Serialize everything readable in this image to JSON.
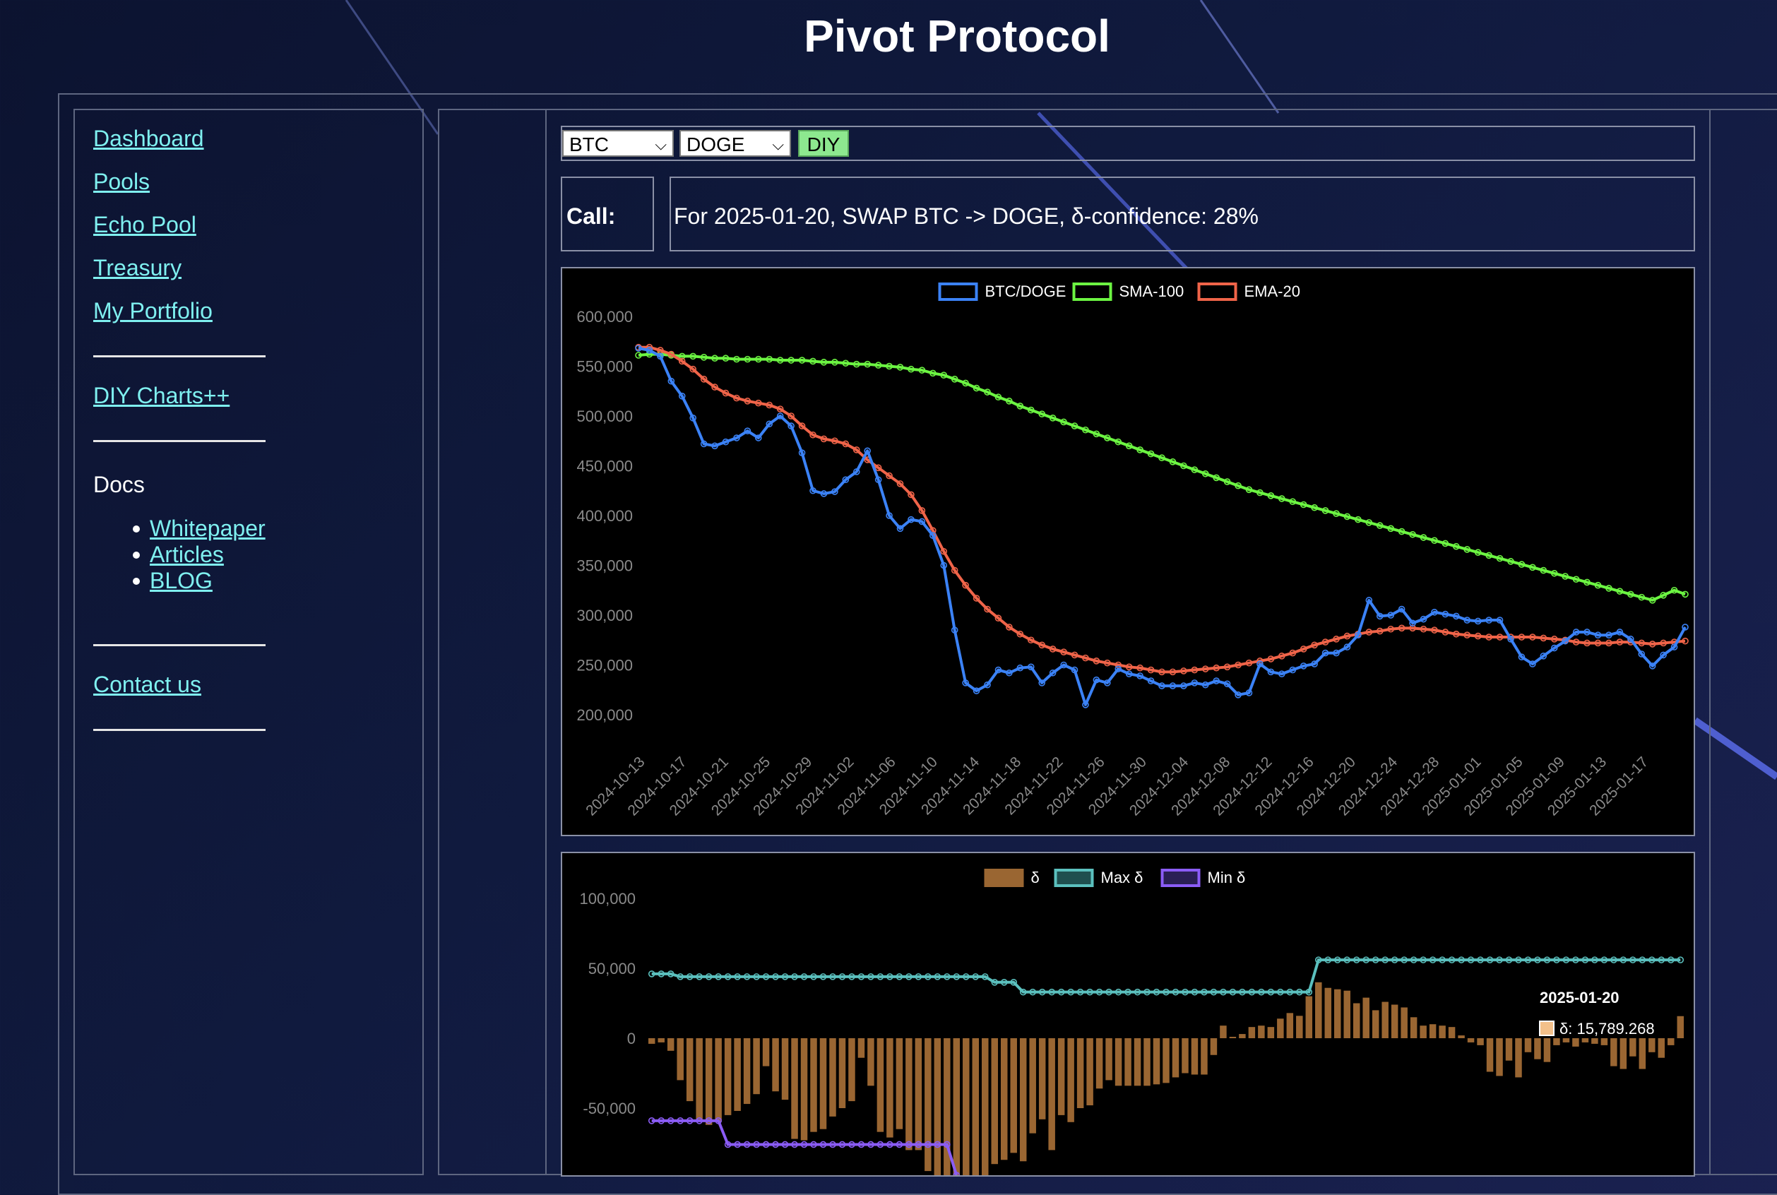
{
  "site": {
    "title": "Pivot Protocol"
  },
  "sidebar": {
    "links": [
      "Dashboard",
      "Pools",
      "Echo Pool",
      "Treasury",
      "My Portfolio"
    ],
    "diy": "DIY Charts++",
    "docs_label": "Docs",
    "docs": [
      "Whitepaper",
      "Articles",
      "BLOG"
    ],
    "contact": "Contact us"
  },
  "controls": {
    "base_select": "BTC",
    "quote_select": "DOGE",
    "diy_button": "DIY"
  },
  "call": {
    "label": "Call:",
    "text": "For 2025-01-20, SWAP BTC -> DOGE, δ-confidence: 28%"
  },
  "colors": {
    "link": "#7ff0f0",
    "btc_doge": "#3b82f6",
    "sma": "#6cf542",
    "ema": "#f06449",
    "delta": "#9a6632",
    "max_delta": "#5bc0be",
    "min_delta": "#8b5cf6"
  },
  "chart_data": [
    {
      "type": "line",
      "title": "",
      "xlabel": "",
      "ylabel": "",
      "ylim": [
        200000,
        600000
      ],
      "y_ticks": [
        "600,000",
        "550,000",
        "500,000",
        "450,000",
        "400,000",
        "350,000",
        "300,000",
        "250,000",
        "200,000"
      ],
      "x_tick_labels": [
        "2024-10-13",
        "2024-10-17",
        "2024-10-21",
        "2024-10-25",
        "2024-10-29",
        "2024-11-02",
        "2024-11-06",
        "2024-11-10",
        "2024-11-14",
        "2024-11-18",
        "2024-11-22",
        "2024-11-26",
        "2024-11-30",
        "2024-12-04",
        "2024-12-08",
        "2024-12-12",
        "2024-12-16",
        "2024-12-20",
        "2024-12-24",
        "2024-12-28",
        "2025-01-01",
        "2025-01-05",
        "2025-01-09",
        "2025-01-13",
        "2025-01-17"
      ],
      "legend_position": "top",
      "series": [
        {
          "name": "BTC/DOGE",
          "color": "#3b82f6",
          "values": [
            568000,
            566000,
            560000,
            535000,
            520000,
            498000,
            472000,
            470000,
            474000,
            478000,
            485000,
            478000,
            492000,
            500000,
            490000,
            463000,
            425000,
            422000,
            424000,
            436000,
            444000,
            465000,
            436000,
            400000,
            387000,
            396000,
            394000,
            380000,
            350000,
            285000,
            232000,
            224000,
            230000,
            245000,
            242000,
            247000,
            248000,
            232000,
            242000,
            250000,
            245000,
            210000,
            235000,
            232000,
            246000,
            241000,
            239000,
            234000,
            229000,
            229000,
            229000,
            232000,
            230000,
            234000,
            231000,
            220000,
            222000,
            251000,
            243000,
            241000,
            245000,
            249000,
            251000,
            262000,
            262000,
            268000,
            280000,
            315000,
            299000,
            300000,
            306000,
            292000,
            296000,
            303000,
            301000,
            299000,
            295000,
            294000,
            295000,
            295000,
            276000,
            258000,
            251000,
            259000,
            267000,
            274000,
            283000,
            283000,
            280000,
            280000,
            283000,
            276000,
            261000,
            249000,
            260000,
            268000,
            288000
          ]
        },
        {
          "name": "SMA-100",
          "color": "#6cf542",
          "values": [
            561000,
            562000,
            562000,
            561000,
            560000,
            560000,
            559000,
            558000,
            558000,
            557000,
            557000,
            557000,
            557000,
            556000,
            556000,
            556000,
            555000,
            554000,
            554000,
            553000,
            552000,
            552000,
            551000,
            550000,
            549000,
            547000,
            546000,
            543000,
            541000,
            537000,
            533000,
            528000,
            524000,
            519000,
            515000,
            510000,
            506000,
            502000,
            498000,
            494000,
            490000,
            486000,
            482000,
            478000,
            474000,
            470000,
            466000,
            462000,
            458000,
            454000,
            450000,
            446000,
            442000,
            438000,
            434000,
            430000,
            426000,
            423000,
            420000,
            417000,
            414000,
            411000,
            408000,
            405000,
            402000,
            399000,
            396000,
            393000,
            390000,
            387000,
            384000,
            381000,
            378000,
            375000,
            372000,
            369000,
            366000,
            363000,
            360000,
            357000,
            354000,
            351000,
            348000,
            345000,
            342000,
            339000,
            336000,
            333000,
            330000,
            327000,
            324000,
            321000,
            318000,
            315000,
            320000,
            325000,
            321000
          ]
        },
        {
          "name": "EMA-20",
          "color": "#f06449",
          "values": [
            569000,
            569000,
            566000,
            562000,
            555000,
            547000,
            537000,
            529000,
            523000,
            518000,
            515000,
            513000,
            511000,
            507000,
            500000,
            490000,
            481000,
            477000,
            475000,
            472000,
            466000,
            456000,
            448000,
            440000,
            432000,
            421000,
            405000,
            385000,
            364000,
            345000,
            330000,
            317000,
            306000,
            297000,
            288000,
            281000,
            275000,
            270000,
            266000,
            263000,
            260000,
            257000,
            254000,
            252000,
            250000,
            248000,
            247000,
            245000,
            243000,
            243000,
            244000,
            245000,
            246000,
            247000,
            248000,
            250000,
            252000,
            254000,
            256000,
            259000,
            262000,
            266000,
            270000,
            273000,
            276000,
            279000,
            281000,
            283000,
            284000,
            286000,
            287000,
            287000,
            286000,
            285000,
            283000,
            281000,
            280000,
            279000,
            278000,
            278000,
            278000,
            278000,
            278000,
            277000,
            276000,
            275000,
            273000,
            272000,
            272000,
            272000,
            273000,
            273000,
            272000,
            271000,
            272000,
            273000,
            274000
          ]
        }
      ]
    },
    {
      "type": "bar",
      "title": "",
      "xlabel": "",
      "ylabel": "",
      "ylim": [
        -100000,
        100000
      ],
      "y_ticks": [
        "100,000",
        "50,000",
        "0",
        "-50,000"
      ],
      "legend_position": "top",
      "tooltip": {
        "title": "2025-01-20",
        "label": "δ: 15,789.268"
      },
      "series": [
        {
          "name": "δ",
          "color": "#9a6632",
          "values": [
            -4000,
            -3000,
            -9000,
            -30000,
            -45000,
            -58000,
            -62000,
            -60000,
            -55000,
            -52000,
            -47000,
            -40000,
            -20000,
            -38000,
            -44000,
            -72000,
            -73000,
            -67000,
            -65000,
            -56000,
            -50000,
            -45000,
            -14000,
            -34000,
            -67000,
            -71000,
            -65000,
            -80000,
            -80000,
            -95000,
            -98000,
            -98000,
            -98000,
            -98000,
            -98000,
            -98000,
            -90000,
            -87000,
            -82000,
            -88000,
            -68000,
            -58000,
            -80000,
            -55000,
            -60000,
            -50000,
            -48000,
            -36000,
            -30000,
            -34000,
            -34000,
            -34000,
            -34000,
            -33000,
            -32000,
            -28000,
            -25000,
            -26000,
            -26000,
            -12000,
            9000,
            1000,
            3000,
            8000,
            9000,
            8000,
            14000,
            18000,
            16000,
            30000,
            40000,
            36000,
            35000,
            34000,
            25000,
            29000,
            20000,
            26000,
            24000,
            22000,
            15000,
            9000,
            10000,
            9000,
            8000,
            2000,
            -3000,
            -5000,
            -24000,
            -27000,
            -16000,
            -28000,
            -10000,
            -15000,
            -17000,
            -5000,
            -3000,
            -6000,
            -3000,
            -4000,
            -5000,
            -20000,
            -22000,
            -13000,
            -22000,
            -10000,
            -14000,
            -5000,
            15789
          ]
        },
        {
          "name": "Max δ",
          "color": "#5bc0be",
          "values": [
            46000,
            46000,
            46000,
            44000,
            44000,
            44000,
            44000,
            44000,
            44000,
            44000,
            44000,
            44000,
            44000,
            44000,
            44000,
            44000,
            44000,
            44000,
            44000,
            44000,
            44000,
            44000,
            44000,
            44000,
            44000,
            44000,
            44000,
            44000,
            44000,
            44000,
            44000,
            44000,
            44000,
            44000,
            44000,
            44000,
            40000,
            40000,
            40000,
            33000,
            33000,
            33000,
            33000,
            33000,
            33000,
            33000,
            33000,
            33000,
            33000,
            33000,
            33000,
            33000,
            33000,
            33000,
            33000,
            33000,
            33000,
            33000,
            33000,
            33000,
            33000,
            33000,
            33000,
            33000,
            33000,
            33000,
            33000,
            33000,
            33000,
            33000,
            56000,
            56000,
            56000,
            56000,
            56000,
            56000,
            56000,
            56000,
            56000,
            56000,
            56000,
            56000,
            56000,
            56000,
            56000,
            56000,
            56000,
            56000,
            56000,
            56000,
            56000,
            56000,
            56000,
            56000,
            56000,
            56000,
            56000,
            56000,
            56000,
            56000,
            56000,
            56000,
            56000,
            56000,
            56000,
            56000,
            56000,
            56000,
            56000
          ]
        },
        {
          "name": "Min δ",
          "color": "#8b5cf6",
          "values": [
            -59000,
            -59000,
            -59000,
            -59000,
            -59000,
            -59000,
            -59000,
            -59000,
            -76000,
            -76000,
            -76000,
            -76000,
            -76000,
            -76000,
            -76000,
            -76000,
            -76000,
            -76000,
            -76000,
            -76000,
            -76000,
            -76000,
            -76000,
            -76000,
            -76000,
            -76000,
            -76000,
            -76000,
            -76000,
            -76000,
            -76000,
            -76000,
            -98000
          ]
        }
      ]
    }
  ]
}
